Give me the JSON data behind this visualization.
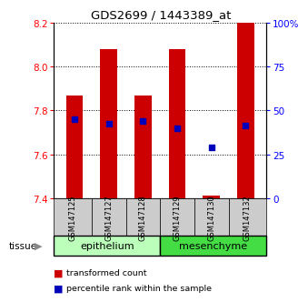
{
  "title": "GDS2699 / 1443389_at",
  "samples": [
    "GSM147125",
    "GSM147127",
    "GSM147128",
    "GSM147129",
    "GSM147130",
    "GSM147132"
  ],
  "bar_bottoms": [
    7.4,
    7.4,
    7.4,
    7.4,
    7.4,
    7.4
  ],
  "bar_tops": [
    7.87,
    8.08,
    7.87,
    8.08,
    7.41,
    8.2
  ],
  "percentile_values": [
    7.76,
    7.74,
    7.75,
    7.72,
    7.63,
    7.73
  ],
  "ylim_left": [
    7.4,
    8.2
  ],
  "ylim_right": [
    0,
    100
  ],
  "yticks_left": [
    7.4,
    7.6,
    7.8,
    8.0,
    8.2
  ],
  "yticks_right": [
    0,
    25,
    50,
    75,
    100
  ],
  "ytick_labels_right": [
    "0",
    "25",
    "50",
    "75",
    "100%"
  ],
  "bar_color": "#cc0000",
  "blue_color": "#0000bb",
  "tissue_groups": [
    {
      "label": "epithelium",
      "indices": [
        0,
        1,
        2
      ],
      "color": "#bbffbb"
    },
    {
      "label": "mesenchyme",
      "indices": [
        3,
        4,
        5
      ],
      "color": "#44dd44"
    }
  ],
  "legend_red_label": "transformed count",
  "legend_blue_label": "percentile rank within the sample",
  "bar_width": 0.5,
  "sample_box_color": "#cccccc",
  "tissue_label": "tissue"
}
